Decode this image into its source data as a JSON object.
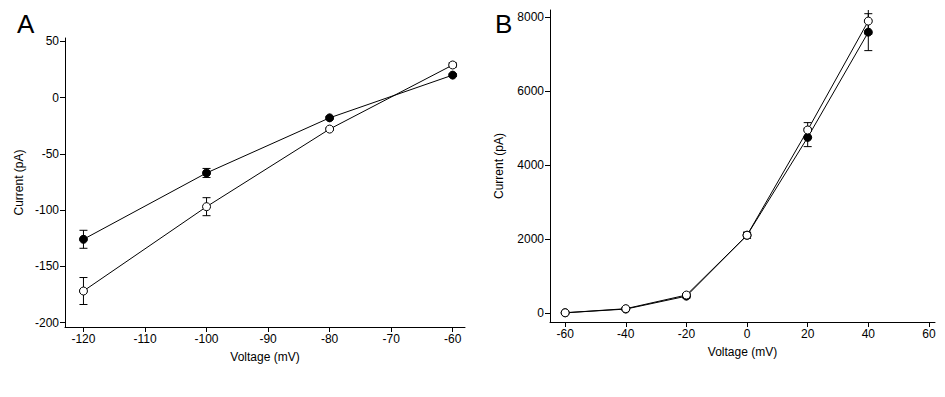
{
  "chart_data": [
    {
      "type": "line",
      "title": "A",
      "x_label": "Voltage (mV)",
      "y_label": "Current (pA)",
      "x": [
        -120,
        -100,
        -80,
        -60
      ],
      "xlim": [
        -123,
        -58
      ],
      "xticks": [
        -120,
        -110,
        -100,
        -90,
        -80,
        -70,
        -60
      ],
      "ylim": [
        -204,
        53
      ],
      "yticks": [
        -200,
        -150,
        -100,
        -50,
        0,
        50
      ],
      "grid": false,
      "series": [
        {
          "color": "#000000",
          "marker": "filled",
          "values": [
            -126,
            -67,
            -18,
            20
          ],
          "errors": [
            8,
            4,
            1,
            1
          ]
        },
        {
          "color": "#000000",
          "marker": "open",
          "values": [
            -172,
            -97,
            -28,
            29
          ],
          "errors": [
            12,
            8,
            1,
            2
          ]
        }
      ]
    },
    {
      "type": "line",
      "title": "B",
      "x_label": "Voltage (mV)",
      "y_label": "Current (pA)",
      "x": [
        -60,
        -40,
        -20,
        0,
        20,
        40
      ],
      "xlim": [
        -65,
        62
      ],
      "xticks": [
        -60,
        -40,
        -20,
        0,
        20,
        40,
        60
      ],
      "ylim": [
        -250,
        8200
      ],
      "yticks": [
        0,
        2000,
        4000,
        6000,
        8000
      ],
      "grid": false,
      "series": [
        {
          "color": "#000000",
          "marker": "filled",
          "values": [
            0,
            100,
            450,
            2100,
            4750,
            7600
          ],
          "errors": [
            0,
            30,
            50,
            80,
            250,
            500
          ]
        },
        {
          "color": "#000000",
          "marker": "open",
          "values": [
            0,
            110,
            480,
            2100,
            4950,
            7900
          ],
          "errors": [
            0,
            30,
            40,
            80,
            200,
            350
          ]
        }
      ]
    }
  ]
}
